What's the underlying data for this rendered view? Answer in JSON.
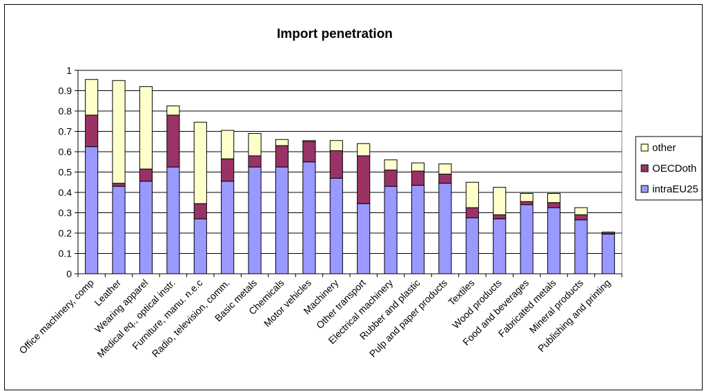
{
  "chart_data": {
    "type": "bar",
    "stacked": true,
    "title": "Import penetration",
    "xlabel": "",
    "ylabel": "",
    "ylim": [
      0,
      1
    ],
    "yticks": [
      "0",
      "0.1",
      "0.2",
      "0.3",
      "0.4",
      "0.5",
      "0.6",
      "0.7",
      "0.8",
      "0.9",
      "1"
    ],
    "grid": "horizontal",
    "legend_position": "right",
    "categories": [
      "Office machinery, comp",
      "Leather",
      "Wearing apparel",
      "Medical eq., optical instr.",
      "Furniture, manu. n.e.c",
      "Radio, television, comm.",
      "Basic metals",
      "Chemicals",
      "Motor vehicles",
      "Machinery",
      "Other transport",
      "Electrical machinery",
      "Rubber and plastic",
      "Pulp and paper products",
      "Textiles",
      "Wood products",
      "Food and beverages",
      "Fabricated metals",
      "Mineral products",
      "Publishing and printing"
    ],
    "series": [
      {
        "name": "intraEU25",
        "color": "#9999ff",
        "values": [
          0.625,
          0.43,
          0.455,
          0.525,
          0.27,
          0.455,
          0.525,
          0.525,
          0.55,
          0.47,
          0.345,
          0.43,
          0.435,
          0.445,
          0.275,
          0.27,
          0.34,
          0.325,
          0.265,
          0.195
        ]
      },
      {
        "name": "OECDoth",
        "color": "#993366",
        "values": [
          0.155,
          0.015,
          0.06,
          0.255,
          0.075,
          0.11,
          0.055,
          0.105,
          0.1,
          0.135,
          0.235,
          0.08,
          0.07,
          0.045,
          0.05,
          0.02,
          0.015,
          0.025,
          0.025,
          0.005
        ]
      },
      {
        "name": "other",
        "color": "#ffffcc",
        "values": [
          0.175,
          0.505,
          0.405,
          0.045,
          0.4,
          0.14,
          0.11,
          0.03,
          0.005,
          0.05,
          0.06,
          0.05,
          0.04,
          0.05,
          0.125,
          0.135,
          0.04,
          0.045,
          0.035,
          0.005
        ]
      }
    ]
  }
}
